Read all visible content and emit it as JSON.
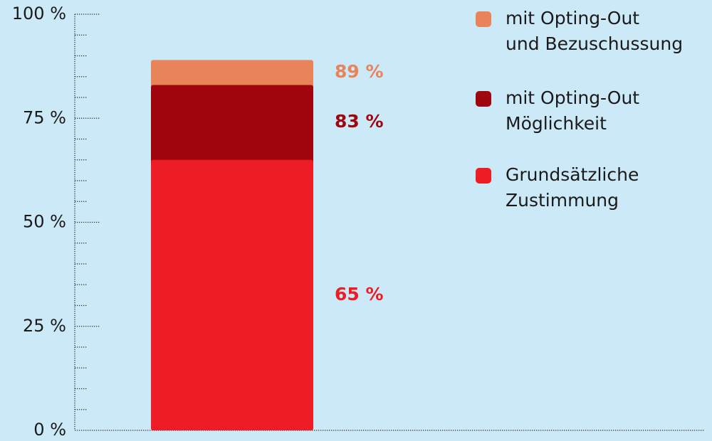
{
  "chart_data": {
    "type": "bar",
    "arrangement": "overlap",
    "categories": [
      null
    ],
    "series": [
      {
        "name": "mit Opting-Out\nund Bezuschussung",
        "color": "#e8835a",
        "values": [
          89
        ],
        "value_labels": [
          "89 %"
        ]
      },
      {
        "name": "mit Opting-Out\nMöglichkeit",
        "color": "#a0060e",
        "values": [
          83
        ],
        "value_labels": [
          "83 %"
        ]
      },
      {
        "name": "Grundsätzliche\nZustimmung",
        "color": "#ee1c25",
        "values": [
          65
        ],
        "value_labels": [
          "65 %"
        ]
      }
    ],
    "ylim": [
      0,
      100
    ],
    "yticks": [
      {
        "value": 0,
        "label": "0 %"
      },
      {
        "value": 25,
        "label": "25 %"
      },
      {
        "value": 50,
        "label": "50 %"
      },
      {
        "value": 75,
        "label": "75 %"
      },
      {
        "value": 100,
        "label": "100 %"
      }
    ],
    "minor_yticks": [
      5,
      10,
      15,
      20,
      30,
      35,
      40,
      45,
      55,
      60,
      65,
      70,
      80,
      85,
      90,
      95
    ],
    "legend": "top-right",
    "grid": false
  }
}
